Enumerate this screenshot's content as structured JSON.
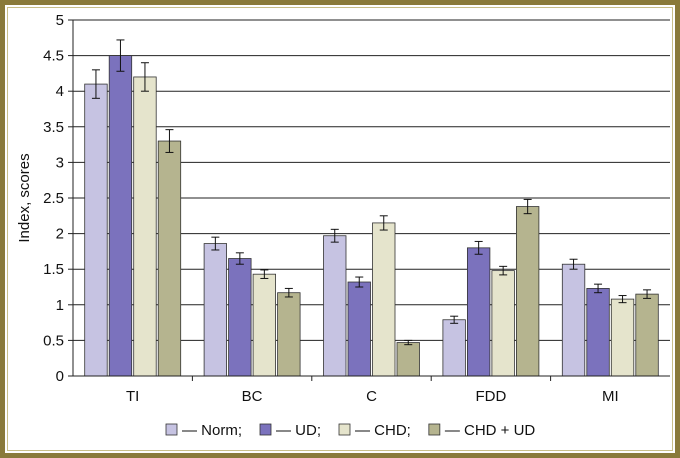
{
  "chart_data": {
    "type": "bar",
    "title": "",
    "xlabel": "",
    "ylabel": "Index, scores",
    "ylim": [
      0,
      5
    ],
    "yticks": [
      0,
      0.5,
      1,
      1.5,
      2,
      2.5,
      3,
      3.5,
      4,
      4.5,
      5
    ],
    "ytick_labels": [
      "0",
      "0.5",
      "1",
      "1.5",
      "2",
      "2.5",
      "3",
      "3.5",
      "4",
      "4.5",
      "5"
    ],
    "grid": true,
    "legend_position": "bottom",
    "categories": [
      "TI",
      "BC",
      "C",
      "FDD",
      "MI"
    ],
    "series": [
      {
        "name": "— Norm;",
        "color": "#c6c3e2",
        "values": [
          4.1,
          1.86,
          1.97,
          0.79,
          1.57
        ],
        "errors": [
          0.2,
          0.09,
          0.09,
          0.05,
          0.07
        ]
      },
      {
        "name": "— UD;",
        "color": "#7b72bd",
        "values": [
          4.5,
          1.65,
          1.32,
          1.8,
          1.23
        ],
        "errors": [
          0.22,
          0.08,
          0.07,
          0.09,
          0.06
        ]
      },
      {
        "name": "— CHD;",
        "color": "#e5e4cc",
        "values": [
          4.2,
          1.43,
          2.15,
          1.48,
          1.08
        ],
        "errors": [
          0.2,
          0.06,
          0.1,
          0.06,
          0.05
        ]
      },
      {
        "name": "— CHD + UD",
        "color": "#b5b48f",
        "values": [
          3.3,
          1.17,
          0.47,
          2.38,
          1.15
        ],
        "errors": [
          0.16,
          0.06,
          0.03,
          0.1,
          0.06
        ]
      }
    ]
  }
}
